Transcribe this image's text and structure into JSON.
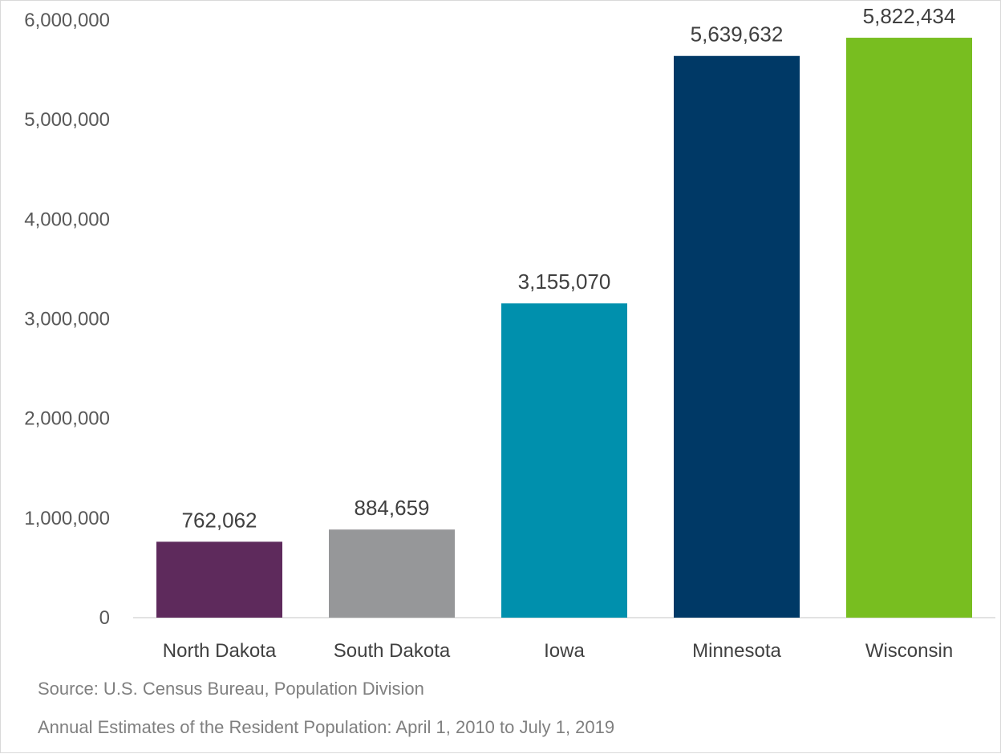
{
  "chart_data": {
    "type": "bar",
    "categories": [
      "North Dakota",
      "South Dakota",
      "Iowa",
      "Minnesota",
      "Wisconsin"
    ],
    "values": [
      762062,
      884659,
      3155070,
      5639632,
      5822434
    ],
    "data_labels": [
      "762,062",
      "884,659",
      "3,155,070",
      "5,639,632",
      "5,822,434"
    ],
    "colors": [
      "#5e2a5c",
      "#969799",
      "#0090ad",
      "#003966",
      "#78be20"
    ],
    "ylim": [
      0,
      6000000
    ],
    "yticks": [
      0,
      1000000,
      2000000,
      3000000,
      4000000,
      5000000,
      6000000
    ],
    "ytick_labels": [
      "0",
      "1,000,000",
      "2,000,000",
      "3,000,000",
      "4,000,000",
      "5,000,000",
      "6,000,000"
    ],
    "grid": false,
    "legend": "none"
  },
  "source": {
    "line1": "Source: U.S. Census Bureau, Population Division",
    "line2": "Annual Estimates of the Resident Population: April 1, 2010 to July 1, 2019"
  }
}
